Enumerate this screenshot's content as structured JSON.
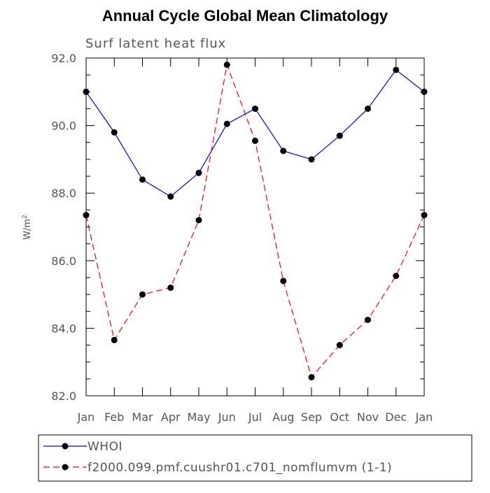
{
  "chart_data": {
    "type": "line",
    "title": "Annual Cycle Global Mean Climatology",
    "subtitle": "Surf latent heat flux",
    "ylabel": "W/m",
    "ylabel_superscript": "2",
    "xlabel": "",
    "categories": [
      "Jan",
      "Feb",
      "Mar",
      "Apr",
      "May",
      "Jun",
      "Jul",
      "Aug",
      "Sep",
      "Oct",
      "Nov",
      "Dec",
      "Jan"
    ],
    "ylim": [
      82.0,
      92.0
    ],
    "yticks": [
      82.0,
      84.0,
      86.0,
      88.0,
      90.0,
      92.0
    ],
    "ytick_labels": [
      "82.0",
      "84.0",
      "86.0",
      "88.0",
      "90.0",
      "92.0"
    ],
    "grid": false,
    "legend_position": "bottom",
    "series": [
      {
        "name": "WHOI",
        "color": "#0000ff",
        "dash": "solid",
        "marker": "filled-circle",
        "values": [
          91.0,
          89.8,
          88.4,
          87.9,
          88.6,
          90.05,
          90.5,
          89.25,
          89.0,
          89.7,
          90.5,
          91.65,
          91.0
        ]
      },
      {
        "name": "f2000.099.pmf.cuushr01.c701_nomflumvm (1-1)",
        "color": "#ff0000",
        "dash": "dashed",
        "marker": "filled-circle",
        "values": [
          87.35,
          83.65,
          85.0,
          85.2,
          87.2,
          91.8,
          89.55,
          85.4,
          82.55,
          83.5,
          84.25,
          85.55,
          87.35
        ]
      }
    ]
  }
}
